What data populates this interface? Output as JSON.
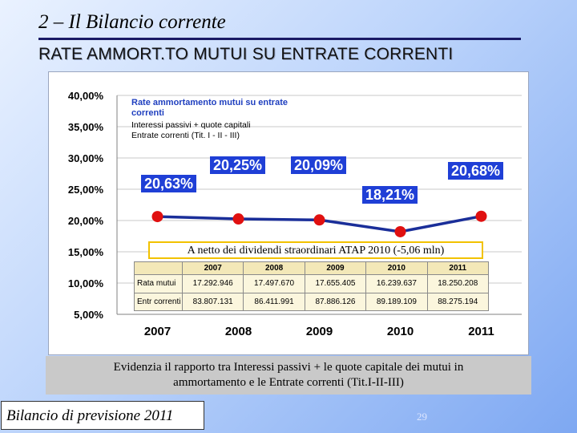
{
  "slide": {
    "title": "2 – Il Bilancio corrente",
    "subtitle": "RATE AMMORT.TO MUTUI SU ENTRATE CORRENTI",
    "note": "A netto dei dividendi straordinari ATAP 2010 (-5,06 mln)",
    "summary_line1": "Evidenzia il rapporto tra Interessi passivi + le quote capitale dei mutui in",
    "summary_line2": "ammortamento e le Entrate correnti (Tit.I-II-III)",
    "footer": "Bilancio di previsione 2011",
    "page_number": "29"
  },
  "legend": {
    "title": "Rate ammortamento mutui su entrate correnti",
    "items": [
      "Interessi passivi + quote capitali",
      "Entrate correnti (Tit. I - II - III)"
    ]
  },
  "table": {
    "headers": [
      "",
      "2007",
      "2008",
      "2009",
      "2010",
      "2011"
    ],
    "rows": [
      [
        "Rata mutui",
        "17.292.946",
        "17.497.670",
        "17.655.405",
        "16.239.637",
        "18.250.208"
      ],
      [
        "Entr correnti",
        "83.807.131",
        "86.411.991",
        "87.886.126",
        "89.189.109",
        "88.275.194"
      ]
    ]
  },
  "colors": {
    "line": "#1a2e99",
    "marker": "#e01010",
    "callout_bg": "#1f3fd6",
    "note_border": "#f2c200"
  },
  "chart_data": {
    "type": "line",
    "title": "Rate ammortamento mutui su entrate correnti",
    "categories": [
      "2007",
      "2008",
      "2009",
      "2010",
      "2011"
    ],
    "values": [
      20.63,
      20.25,
      20.09,
      18.21,
      20.68
    ],
    "data_labels": [
      "20,63%",
      "20,25%",
      "20,09%",
      "18,21%",
      "20,68%"
    ],
    "yticks": [
      "5,00%",
      "10,00%",
      "15,00%",
      "20,00%",
      "25,00%",
      "30,00%",
      "35,00%",
      "40,00%"
    ],
    "ylim": [
      5,
      40
    ],
    "xlabel": "",
    "ylabel": "",
    "grid": true,
    "legend_position": "top-left"
  }
}
